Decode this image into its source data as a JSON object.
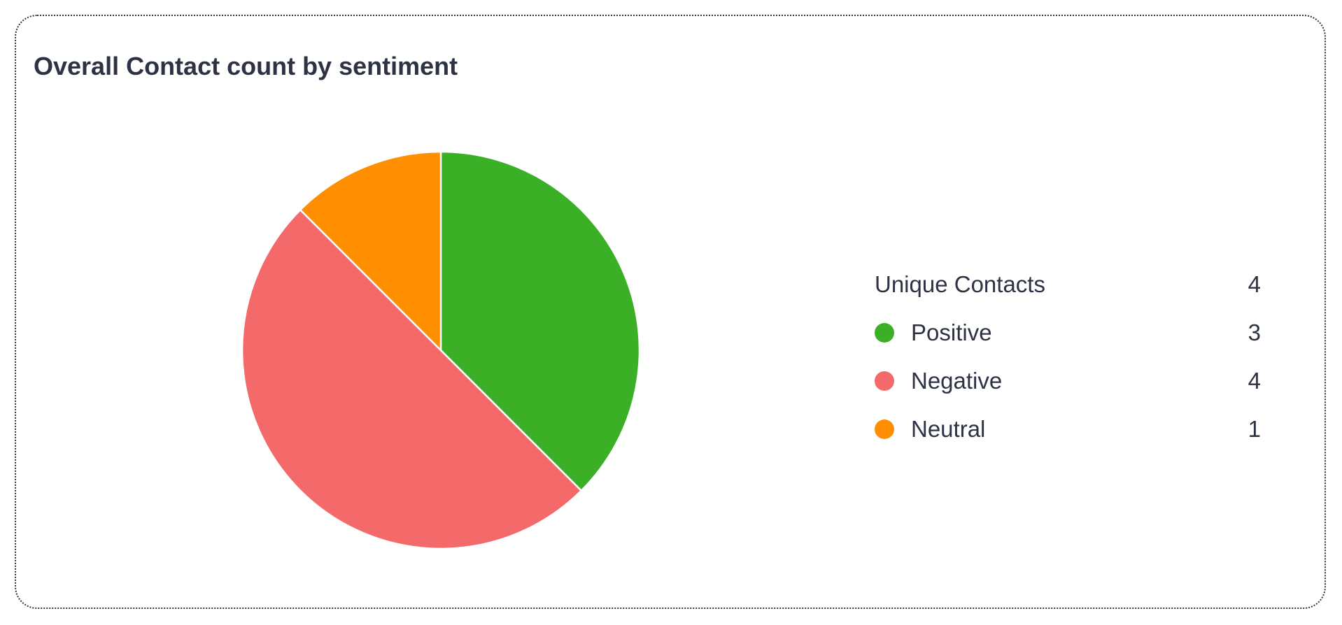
{
  "chart_data": {
    "type": "pie",
    "title": "Overall Contact count by sentiment",
    "legend_header": {
      "label": "Unique Contacts",
      "value": "4"
    },
    "slices": [
      {
        "label": "Positive",
        "value": 3,
        "color": "#3bb027"
      },
      {
        "label": "Negative",
        "value": 4,
        "color": "#f4696a"
      },
      {
        "label": "Neutral",
        "value": 1,
        "color": "#ff8f00"
      }
    ],
    "legend_placement": "right"
  }
}
